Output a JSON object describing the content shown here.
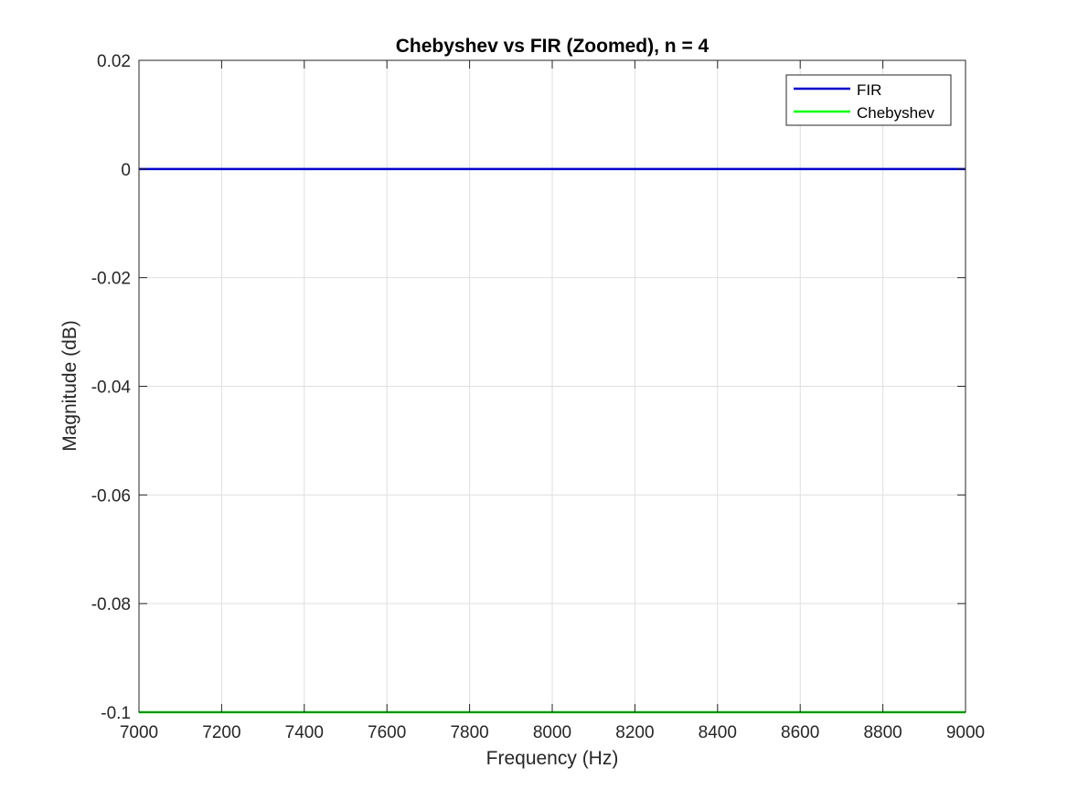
{
  "chart_data": {
    "type": "line",
    "title": "Chebyshev vs FIR (Zoomed), n = 4",
    "xlabel": "Frequency (Hz)",
    "ylabel": "Magnitude (dB)",
    "xlim": [
      7000,
      9000
    ],
    "ylim": [
      -0.1,
      0.02
    ],
    "xticks": [
      7000,
      7200,
      7400,
      7600,
      7800,
      8000,
      8200,
      8400,
      8600,
      8800,
      9000
    ],
    "yticks": [
      -0.1,
      -0.08,
      -0.06,
      -0.04,
      -0.02,
      0,
      0.02
    ],
    "xtick_labels": [
      "7000",
      "7200",
      "7400",
      "7600",
      "7800",
      "8000",
      "8200",
      "8400",
      "8600",
      "8800",
      "9000"
    ],
    "ytick_labels": [
      "-0.1",
      "-0.08",
      "-0.06",
      "-0.04",
      "-0.02",
      "0",
      "0.02"
    ],
    "grid": true,
    "legend_position": "top-right",
    "series": [
      {
        "name": "FIR",
        "color": "#0000cc",
        "x": [
          7000,
          9000
        ],
        "y": [
          0,
          0
        ]
      },
      {
        "name": "Chebyshev",
        "color": "#00ff00",
        "x": [
          7000,
          9000
        ],
        "y": [
          -0.1,
          -0.1
        ]
      }
    ]
  }
}
